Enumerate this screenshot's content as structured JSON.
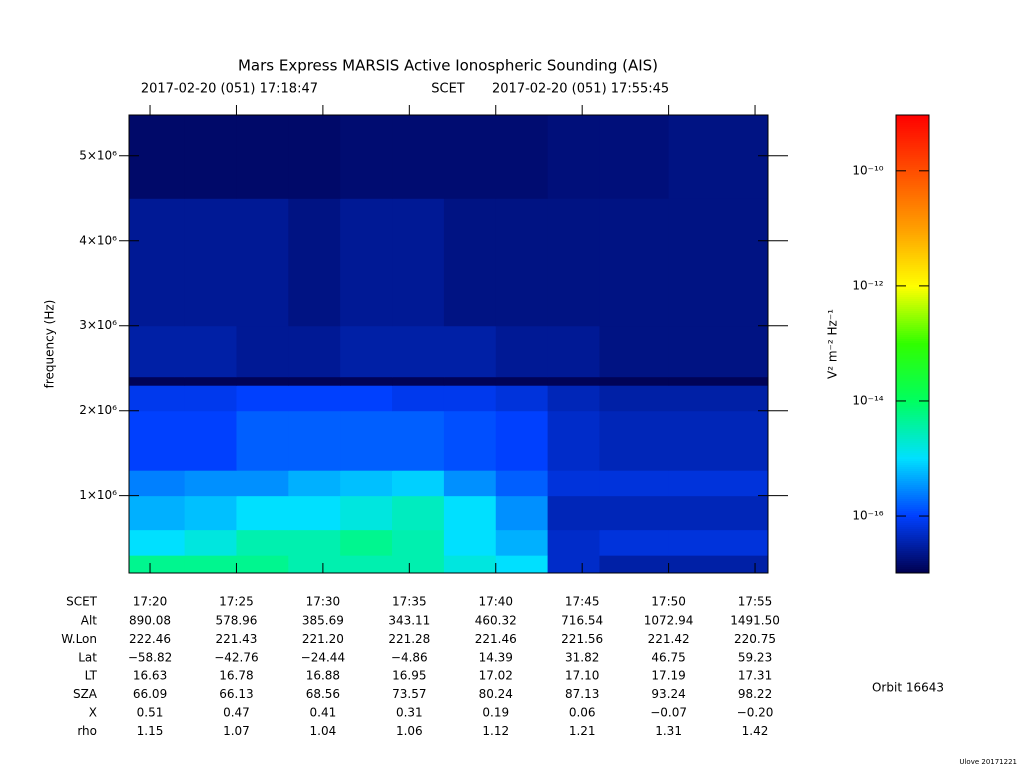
{
  "chart_data": {
    "type": "heatmap",
    "title": "Mars Express MARSIS Active Ionospheric Sounding (AIS)",
    "subtitle": {
      "start": "2017-02-20 (051) 17:18:47",
      "frame": "SCET",
      "end": "2017-02-20 (051) 17:55:45"
    },
    "y_label": "frequency (Hz)",
    "xlim": [
      "2017-02-20T17:18:47",
      "2017-02-20T17:55:45"
    ],
    "xticks": [
      {
        "value": "2017-02-20T17:20",
        "label": "17:20"
      },
      {
        "value": "2017-02-20T17:25",
        "label": "17:25"
      },
      {
        "value": "2017-02-20T17:30",
        "label": "17:30"
      },
      {
        "value": "2017-02-20T17:35",
        "label": "17:35"
      },
      {
        "value": "2017-02-20T17:40",
        "label": "17:40"
      },
      {
        "value": "2017-02-20T17:45",
        "label": "17:45"
      },
      {
        "value": "2017-02-20T17:50",
        "label": "17:50"
      },
      {
        "value": "2017-02-20T17:55",
        "label": "17:55"
      }
    ],
    "ylim": [
      90000,
      5480000
    ],
    "yticks": [
      {
        "value": 1000000,
        "label": "1×10⁶"
      },
      {
        "value": 2000000,
        "label": "2×10⁶"
      },
      {
        "value": 3000000,
        "label": "3×10⁶"
      },
      {
        "value": 4000000,
        "label": "4×10⁶"
      },
      {
        "value": 5000000,
        "label": "5×10⁶"
      }
    ],
    "x_bins": [
      "2017-02-20T17:18:47",
      "2017-02-20T17:22",
      "2017-02-20T17:25",
      "2017-02-20T17:28",
      "2017-02-20T17:31",
      "2017-02-20T17:34",
      "2017-02-20T17:37",
      "2017-02-20T17:40",
      "2017-02-20T17:43",
      "2017-02-20T17:46",
      "2017-02-20T17:50",
      "2017-02-20T17:55:45"
    ],
    "y_bins": [
      90000,
      300000,
      600000,
      1000000,
      1300000,
      2000000,
      2300000,
      2400000,
      3000000,
      4500000,
      5480000
    ],
    "z": [
      [
        -14.3,
        -14.3,
        -14.3,
        -14.5,
        -14.5,
        -14.5,
        -14.8,
        -15,
        -16.3,
        -16.5,
        -16.5
      ],
      [
        -15,
        -14.8,
        -14.5,
        -14.5,
        -14.3,
        -14.5,
        -15,
        -15.3,
        -16.3,
        -16.2,
        -16.2
      ],
      [
        -15.3,
        -15.2,
        -15,
        -15,
        -14.8,
        -14.6,
        -15,
        -15.5,
        -16.4,
        -16.4,
        -16.4
      ],
      [
        -15.6,
        -15.5,
        -15.5,
        -15.3,
        -15.2,
        -15.1,
        -15.5,
        -15.8,
        -16.2,
        -16.2,
        -16.2
      ],
      [
        -16,
        -16,
        -15.8,
        -15.8,
        -15.8,
        -15.8,
        -15.9,
        -16,
        -16.3,
        -16.4,
        -16.4
      ],
      [
        -16.1,
        -16.1,
        -16,
        -16,
        -16,
        -16.1,
        -16.1,
        -16.2,
        -16.4,
        -16.5,
        -16.5
      ],
      [
        -16.95,
        -16.95,
        -16.95,
        -16.95,
        -16.95,
        -16.95,
        -16.95,
        -16.95,
        -16.95,
        -16.95,
        -16.95
      ],
      [
        -16.5,
        -16.5,
        -16.6,
        -16.6,
        -16.5,
        -16.5,
        -16.5,
        -16.6,
        -16.6,
        -16.7,
        -16.7
      ],
      [
        -16.6,
        -16.6,
        -16.6,
        -16.7,
        -16.6,
        -16.6,
        -16.7,
        -16.7,
        -16.7,
        -16.7,
        -16.7
      ],
      [
        -16.85,
        -16.85,
        -16.85,
        -16.85,
        -16.8,
        -16.8,
        -16.8,
        -16.8,
        -16.75,
        -16.75,
        -16.7
      ]
    ],
    "zlim": [
      -16.99,
      -9.03
    ],
    "zticks": [
      {
        "value": -10,
        "label": "10⁻¹⁰"
      },
      {
        "value": -12,
        "label": "10⁻¹²"
      },
      {
        "value": -14,
        "label": "10⁻¹⁴"
      },
      {
        "value": -16,
        "label": "10⁻¹⁶"
      }
    ],
    "z_label": "V² m⁻² Hz⁻¹",
    "colorscale": [
      "#000050",
      "#0040ff",
      "#00e0ff",
      "#00ff60",
      "#30ff00",
      "#ffff00",
      "#ffa000",
      "#ff5000",
      "#ff0000"
    ],
    "ephemeris": {
      "time_label": "SCET",
      "rows": [
        {
          "name": "Alt",
          "values": [
            "890.08",
            "578.96",
            "385.69",
            "343.11",
            "460.32",
            "716.54",
            "1072.94",
            "1491.50"
          ]
        },
        {
          "name": "W.Lon",
          "values": [
            "222.46",
            "221.43",
            "221.20",
            "221.28",
            "221.46",
            "221.56",
            "221.42",
            "220.75"
          ]
        },
        {
          "name": "Lat",
          "values": [
            "−58.82",
            "−42.76",
            "−24.44",
            "−4.86",
            "14.39",
            "31.82",
            "46.75",
            "59.23"
          ]
        },
        {
          "name": "LT",
          "values": [
            "16.63",
            "16.78",
            "16.88",
            "16.95",
            "17.02",
            "17.10",
            "17.19",
            "17.31"
          ]
        },
        {
          "name": "SZA",
          "values": [
            "66.09",
            "66.13",
            "68.56",
            "73.57",
            "80.24",
            "87.13",
            "93.24",
            "98.22"
          ]
        },
        {
          "name": "X",
          "values": [
            "0.51",
            "0.47",
            "0.41",
            "0.31",
            "0.19",
            "0.06",
            "−0.07",
            "−0.20"
          ]
        },
        {
          "name": "rho",
          "values": [
            "1.15",
            "1.07",
            "1.04",
            "1.06",
            "1.12",
            "1.21",
            "1.31",
            "1.42"
          ]
        }
      ]
    },
    "orbit": "Orbit 16643",
    "footer": "Ulove 20171221"
  }
}
